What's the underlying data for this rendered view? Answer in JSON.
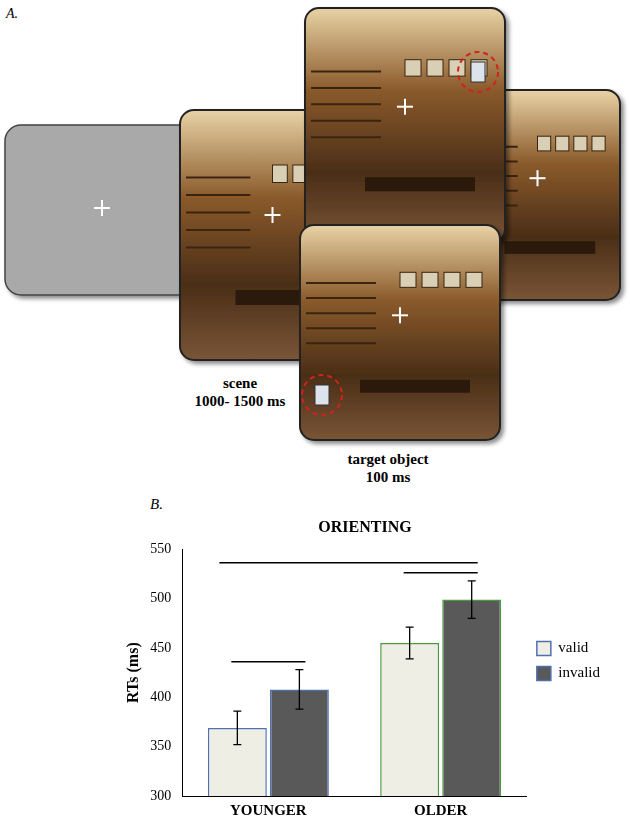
{
  "panel_a": {
    "label": "A.",
    "scene": {
      "label": "scene",
      "duration": "1000- 1500 ms"
    },
    "target": {
      "label": "target object",
      "duration": "100 ms"
    }
  },
  "chart_data": {
    "type": "bar",
    "panel_label": "B.",
    "title": "ORIENTING",
    "y_label": "RTs (ms)",
    "categories": [
      "YOUNGER",
      "OLDER"
    ],
    "series": [
      {
        "name": "valid",
        "color": "#eeeee4",
        "values": [
          369,
          455
        ],
        "errors": [
          17,
          16
        ]
      },
      {
        "name": "invalid",
        "color": "#595959",
        "values": [
          408,
          499
        ],
        "errors": [
          20,
          19
        ]
      }
    ],
    "ylim": [
      300,
      550
    ],
    "yticks": [
      300,
      350,
      400,
      450,
      500,
      550
    ],
    "grid": false,
    "legend": "right"
  }
}
